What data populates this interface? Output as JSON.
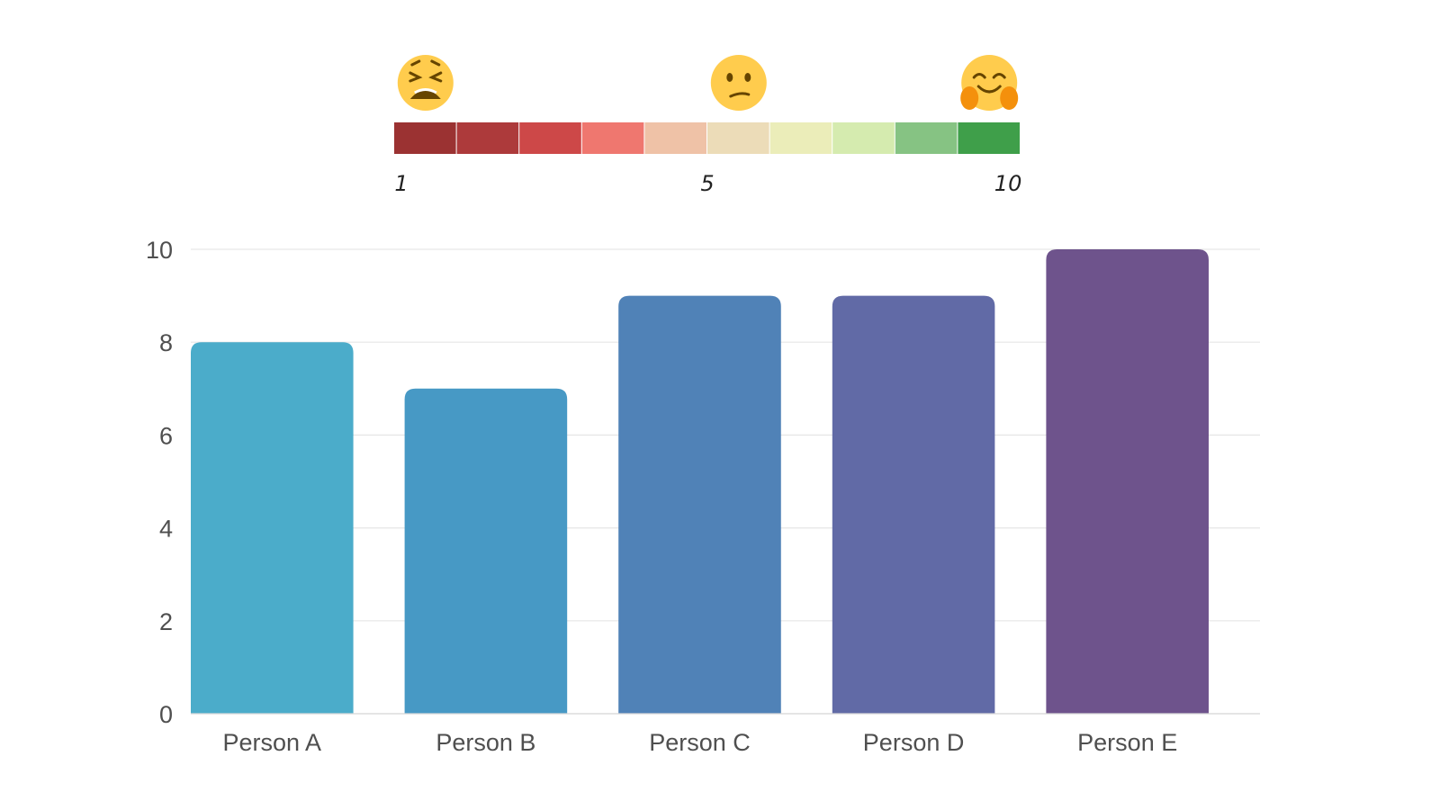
{
  "rating_scale": {
    "colors": [
      "#9b3232",
      "#ad3a3b",
      "#cd4848",
      "#ef776f",
      "#efc2a7",
      "#ecdcb8",
      "#ebedb9",
      "#d5ebaf",
      "#86c383",
      "#3f9f4a"
    ],
    "labels": [
      {
        "text": "1",
        "index": 0
      },
      {
        "text": "5",
        "index": 5
      },
      {
        "text": "10",
        "index": 9
      }
    ],
    "icons": [
      {
        "name": "weary-face-icon",
        "index": 0
      },
      {
        "name": "confused-face-icon",
        "index": 5
      },
      {
        "name": "hugging-face-icon",
        "index": 9
      }
    ]
  },
  "chart_data": {
    "type": "bar",
    "categories": [
      "Person A",
      "Person B",
      "Person C",
      "Person D",
      "Person E"
    ],
    "values": [
      8,
      7,
      9,
      9,
      10
    ],
    "colors": [
      "#4bacca",
      "#4799c5",
      "#5082b7",
      "#616aa6",
      "#6e538c"
    ],
    "ylim": [
      0,
      10
    ],
    "yticks": [
      "0",
      "2",
      "4",
      "6",
      "8",
      "10"
    ],
    "grid": true,
    "title": "",
    "xlabel": "",
    "ylabel": ""
  }
}
